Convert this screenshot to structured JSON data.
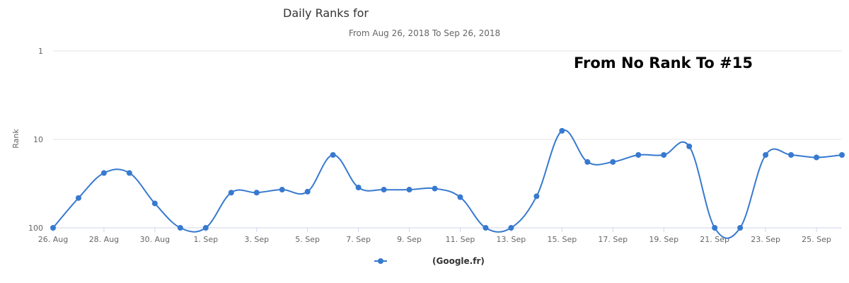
{
  "chart_data": {
    "type": "line",
    "title": "Daily Ranks for",
    "subtitle": "From Aug 26, 2018 To Sep 26, 2018",
    "annotation": "From No Rank To #15",
    "ylabel": "Rank",
    "y_scale": "log",
    "y_reversed": true,
    "ylim": [
      100,
      1
    ],
    "y_ticks": [
      "1",
      "10",
      "100"
    ],
    "x_ticks": [
      "26. Aug",
      "28. Aug",
      "30. Aug",
      "1. Sep",
      "3. Sep",
      "5. Sep",
      "7. Sep",
      "9. Sep",
      "11. Sep",
      "13. Sep",
      "15. Sep",
      "17. Sep",
      "19. Sep",
      "21. Sep",
      "23. Sep",
      "25. Sep"
    ],
    "x": [
      "Aug 26",
      "Aug 27",
      "Aug 28",
      "Aug 29",
      "Aug 30",
      "Aug 31",
      "Sep 1",
      "Sep 2",
      "Sep 3",
      "Sep 4",
      "Sep 5",
      "Sep 6",
      "Sep 7",
      "Sep 8",
      "Sep 9",
      "Sep 10",
      "Sep 11",
      "Sep 12",
      "Sep 13",
      "Sep 14",
      "Sep 15",
      "Sep 16",
      "Sep 17",
      "Sep 18",
      "Sep 19",
      "Sep 20",
      "Sep 21",
      "Sep 22",
      "Sep 23",
      "Sep 24",
      "Sep 25",
      "Sep 26"
    ],
    "series": [
      {
        "name": "(Google.fr)",
        "color": "#3779cf",
        "values": [
          null,
          46,
          24,
          24,
          53,
          null,
          null,
          40,
          40,
          37,
          39,
          15,
          35,
          37,
          37,
          36,
          45,
          null,
          null,
          44,
          8,
          18,
          18,
          15,
          15,
          12,
          null,
          null,
          15,
          15,
          16,
          15
        ]
      }
    ],
    "grid": true,
    "legend_position": "bottom-center"
  }
}
